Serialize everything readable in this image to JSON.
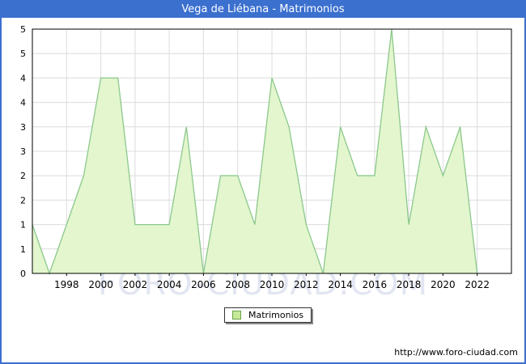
{
  "window": {
    "title": "Vega de Liébana - Matrimonios",
    "title_bar_color": "#3b70cf",
    "border_color": "#3b70cf"
  },
  "watermark": {
    "text": "FORO-CIUDAD.COM",
    "color": "#e2e6f2"
  },
  "legend": {
    "label": "Matrimonios",
    "swatch_fill": "#c6e998",
    "swatch_border": "#6aa24e"
  },
  "footer": {
    "url": "http://www.foro-ciudad.com"
  },
  "chart_data": {
    "type": "area",
    "title": "Vega de Liébana - Matrimonios",
    "series_name": "Matrimonios",
    "x": [
      1996,
      1997,
      1998,
      1999,
      2000,
      2001,
      2002,
      2003,
      2004,
      2005,
      2006,
      2007,
      2008,
      2009,
      2010,
      2011,
      2012,
      2013,
      2014,
      2015,
      2016,
      2017,
      2018,
      2019,
      2020,
      2021,
      2022
    ],
    "values": [
      1,
      0,
      1,
      2,
      4,
      4,
      1,
      1,
      1,
      3,
      0,
      2,
      2,
      1,
      4,
      3,
      1,
      0,
      3,
      2,
      2,
      5,
      1,
      3,
      2,
      3,
      0
    ],
    "xlim": [
      1996,
      2024
    ],
    "ylim": [
      0,
      5
    ],
    "x_ticks": [
      1998,
      2000,
      2002,
      2004,
      2006,
      2008,
      2010,
      2012,
      2014,
      2016,
      2018,
      2020,
      2022
    ],
    "y_tick_step": 0.5,
    "y_tick_labels_top_to_bottom": [
      "5",
      "5",
      "4",
      "4",
      "3",
      "3",
      "2",
      "2",
      "1",
      "1",
      "0"
    ],
    "grid": true,
    "legend_position": "bottom-center",
    "area_fill": "#e3f6ce",
    "line_color": "#8cc88c",
    "gridline_color": "#dcdcdc",
    "frame_color": "#000000"
  }
}
